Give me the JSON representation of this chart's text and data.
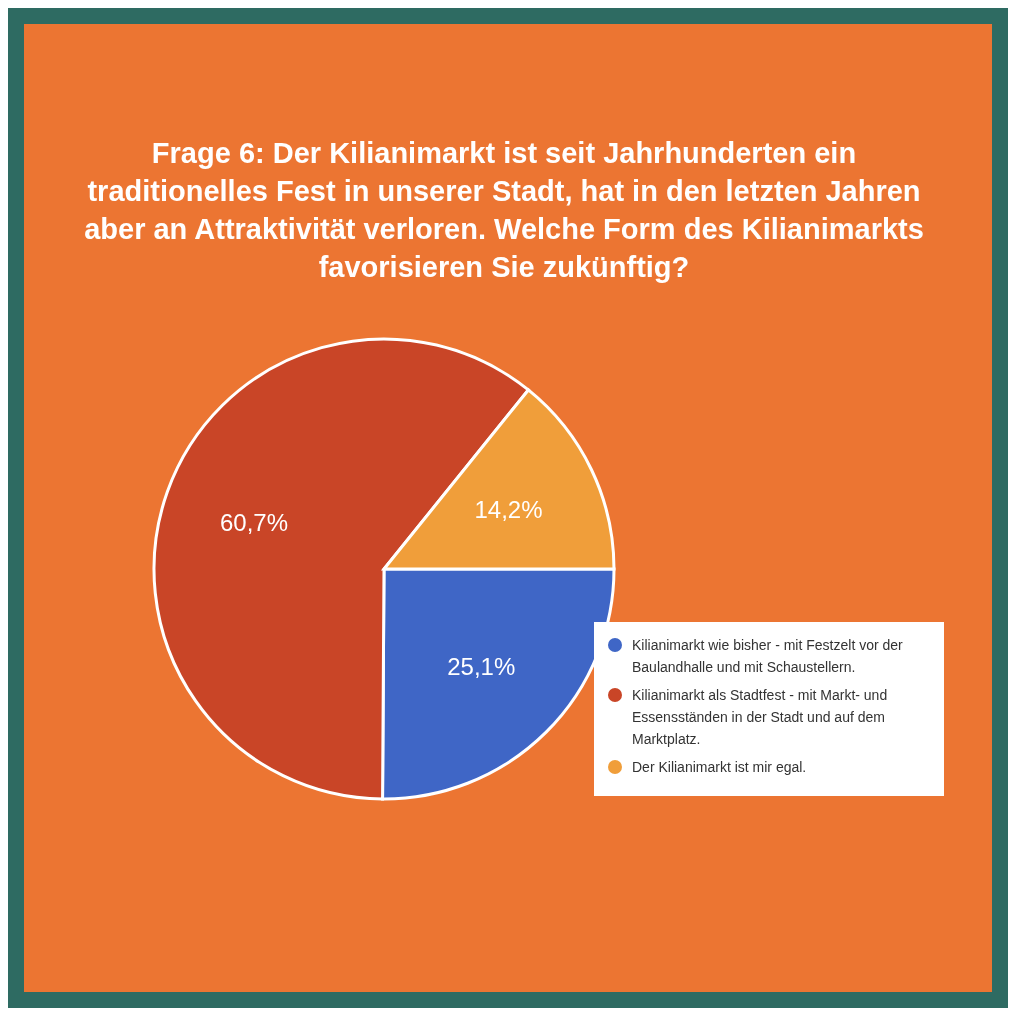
{
  "chart_data": {
    "type": "pie",
    "title": "Frage 6: Der Kilianimarkt ist seit Jahrhunderten ein traditionelles Fest in unserer Stadt, hat in den letzten Jahren aber an Attraktivität verloren. Welche Form des Kilianimarkts favorisieren Sie zukünftig?",
    "categories": [
      "Kilianimarkt wie bisher - mit Festzelt vor der Baulandhalle und mit Schaustellern.",
      "Kilianimarkt als Stadtfest - mit Markt- und Essensständen in der Stadt und auf dem Marktplatz.",
      "Der Kilianimarkt ist mir egal."
    ],
    "values": [
      25.1,
      60.7,
      14.2
    ],
    "value_labels": [
      "25,1%",
      "60,7%",
      "14,2%"
    ],
    "colors": [
      "#3f66c6",
      "#c94527",
      "#f09e3a"
    ],
    "legend": "bottom right"
  }
}
